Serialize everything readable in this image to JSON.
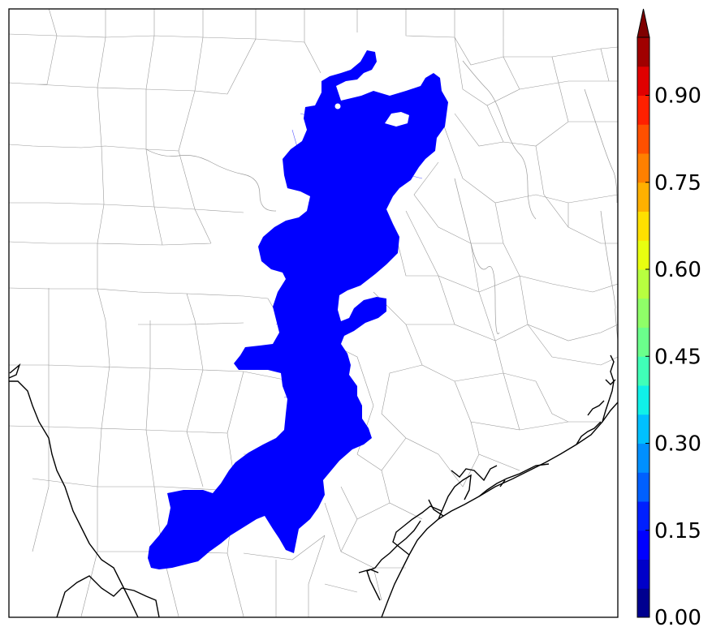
{
  "map": {
    "fill_color": "#0000ff",
    "counties_color": "#9a9a9a",
    "coast_color": "#000000"
  },
  "colorbar": {
    "extend": "max",
    "ticks": [
      {
        "value": 0.0,
        "label": "0.00"
      },
      {
        "value": 0.15,
        "label": "0.15"
      },
      {
        "value": 0.3,
        "label": "0.30"
      },
      {
        "value": 0.45,
        "label": "0.45"
      },
      {
        "value": 0.6,
        "label": "0.60"
      },
      {
        "value": 0.75,
        "label": "0.75"
      },
      {
        "value": 0.9,
        "label": "0.90"
      }
    ],
    "range": [
      0.0,
      1.0
    ],
    "levels": [
      {
        "from": 0.0,
        "to": 0.05,
        "color": "#00008f"
      },
      {
        "from": 0.05,
        "to": 0.1,
        "color": "#0000c8"
      },
      {
        "from": 0.1,
        "to": 0.15,
        "color": "#0000ff"
      },
      {
        "from": 0.15,
        "to": 0.2,
        "color": "#0020ff"
      },
      {
        "from": 0.2,
        "to": 0.25,
        "color": "#0060ff"
      },
      {
        "from": 0.25,
        "to": 0.3,
        "color": "#0090ff"
      },
      {
        "from": 0.3,
        "to": 0.35,
        "color": "#00c0ff"
      },
      {
        "from": 0.35,
        "to": 0.4,
        "color": "#10f0e8"
      },
      {
        "from": 0.4,
        "to": 0.45,
        "color": "#40ffb8"
      },
      {
        "from": 0.45,
        "to": 0.5,
        "color": "#6bff8c"
      },
      {
        "from": 0.5,
        "to": 0.55,
        "color": "#8fff68"
      },
      {
        "from": 0.55,
        "to": 0.6,
        "color": "#b8ff40"
      },
      {
        "from": 0.6,
        "to": 0.65,
        "color": "#e8ff10"
      },
      {
        "from": 0.65,
        "to": 0.7,
        "color": "#ffe000"
      },
      {
        "from": 0.7,
        "to": 0.75,
        "color": "#ffb000"
      },
      {
        "from": 0.75,
        "to": 0.8,
        "color": "#ff8000"
      },
      {
        "from": 0.8,
        "to": 0.85,
        "color": "#ff5000"
      },
      {
        "from": 0.85,
        "to": 0.9,
        "color": "#ff2000"
      },
      {
        "from": 0.9,
        "to": 0.95,
        "color": "#e00000"
      },
      {
        "from": 0.95,
        "to": 1.0,
        "color": "#a00000"
      }
    ],
    "extend_color": "#7f0000"
  }
}
